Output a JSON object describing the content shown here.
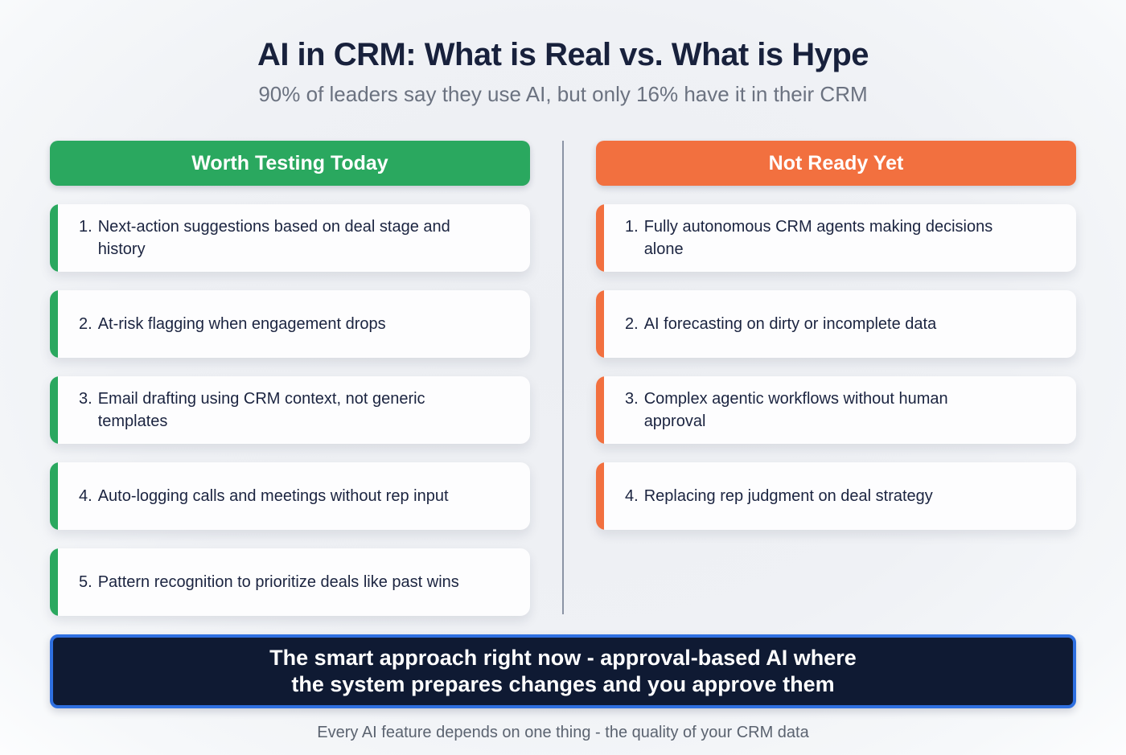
{
  "header": {
    "title": "AI in CRM: What is Real vs. What is Hype",
    "subtitle": "90% of leaders say they use AI, but only 16% have it in their CRM"
  },
  "colors": {
    "green_accent": "#2aa85f",
    "orange_accent": "#f2703f",
    "banner_background": "#0f1a33",
    "banner_border": "#2e6fe0",
    "text_navy": "#1b2440",
    "subtitle_gray": "#6b7280"
  },
  "columns": [
    {
      "label": "Worth Testing Today",
      "items": [
        {
          "num": "1.",
          "text": "Next-action suggestions based on deal stage and\nhistory"
        },
        {
          "num": "2.",
          "text": "At-risk flagging when engagement drops"
        },
        {
          "num": "3.",
          "text": "Email drafting using CRM context, not generic\ntemplates"
        },
        {
          "num": "4.",
          "text": "Auto-logging calls and meetings without rep input"
        },
        {
          "num": "5.",
          "text": "Pattern recognition to prioritize deals like past wins"
        }
      ]
    },
    {
      "label": "Not Ready Yet",
      "items": [
        {
          "num": "1.",
          "text": "Fully autonomous CRM agents making decisions\nalone"
        },
        {
          "num": "2.",
          "text": "AI forecasting on dirty or incomplete data"
        },
        {
          "num": "3.",
          "text": "Complex agentic workflows without human\napproval"
        },
        {
          "num": "4.",
          "text": "Replacing rep judgment on deal strategy"
        }
      ]
    }
  ],
  "banner": {
    "text": "The smart approach right now - approval-based AI where\nthe system prepares changes and you approve them"
  },
  "footer": {
    "text": "Every AI feature depends on one thing - the quality of your CRM data"
  }
}
